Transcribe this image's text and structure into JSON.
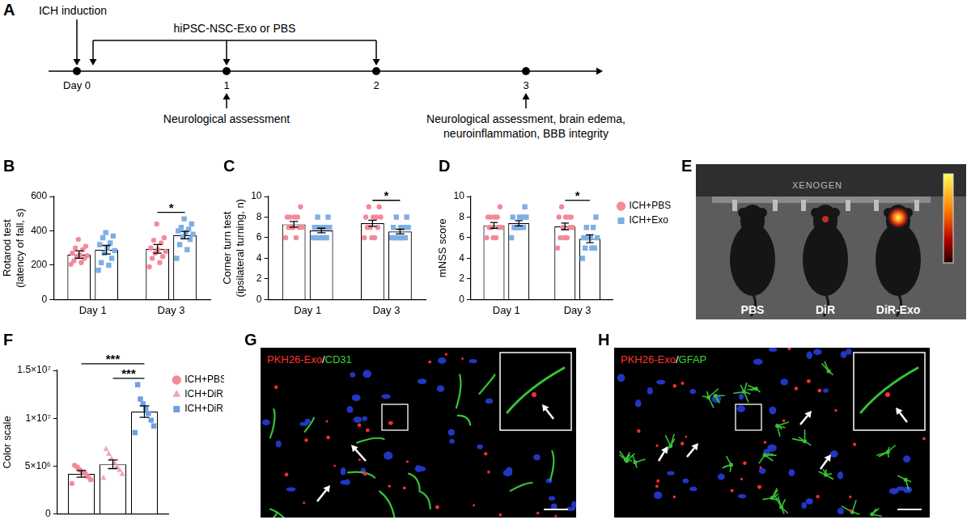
{
  "panel_a": {
    "letter": "A",
    "timeline_ticks": [
      {
        "value": 0,
        "label": "Day 0"
      },
      1,
      2,
      3
    ],
    "top_event": {
      "day": 0,
      "text": "ICH induction"
    },
    "treatment": {
      "days": [
        0,
        1,
        2
      ],
      "text": "hiPSC-NSC-Exo or PBS"
    },
    "bottom_events": [
      {
        "day": 1,
        "text": [
          "Neurological assessment"
        ]
      },
      {
        "day": 3,
        "text": [
          "Neurological assessment, brain edema,",
          "neuroinflammation, BBB integrity"
        ]
      }
    ]
  },
  "chart_data": [
    {
      "letter": "B",
      "type": "bar",
      "y_label": [
        "Rotarod test",
        "(latency of fall, s)"
      ],
      "categories": [
        "Day 1",
        "Day 3"
      ],
      "ylim": [
        0,
        600
      ],
      "yticks": [
        0,
        200,
        400,
        600
      ],
      "grid": false,
      "series": [
        {
          "name": "ICH+PBS",
          "color": "#f4899a",
          "marker": "circle",
          "values": [
            262,
            295
          ],
          "errors": [
            22,
            25
          ],
          "points": [
            [
              205,
              215,
              225,
              240,
              250,
              255,
              260,
              270,
              290,
              300,
              310,
              350
            ],
            [
              190,
              215,
              240,
              250,
              270,
              280,
              290,
              300,
              330,
              345,
              360,
              440
            ]
          ]
        },
        {
          "name": "ICH+Exo",
          "color": "#7eaee6",
          "marker": "square",
          "values": [
            290,
            375
          ],
          "errors": [
            25,
            22
          ],
          "points": [
            [
              170,
              200,
              215,
              240,
              270,
              285,
              300,
              320,
              330,
              360,
              370,
              390
            ],
            [
              240,
              290,
              320,
              350,
              365,
              380,
              390,
              400,
              410,
              420,
              440,
              470
            ]
          ]
        }
      ],
      "annotations": [
        {
          "text": "*",
          "series": [
            "ICH+PBS",
            "ICH+Exo"
          ],
          "category": "Day 3"
        }
      ]
    },
    {
      "letter": "C",
      "type": "bar",
      "y_label": [
        "Corner turn test",
        "(ipsilateral turning, n)"
      ],
      "categories": [
        "Day 1",
        "Day 3"
      ],
      "ylim": [
        0,
        10
      ],
      "yticks": [
        0,
        2,
        4,
        6,
        8,
        10
      ],
      "grid": false,
      "series": [
        {
          "name": "ICH+PBS",
          "color": "#f4899a",
          "marker": "circle",
          "values": [
            7.3,
            7.4
          ],
          "errors": [
            0.28,
            0.3
          ],
          "points": [
            [
              6,
              6,
              7,
              7,
              7,
              7,
              8,
              8,
              8,
              8,
              9,
              7
            ],
            [
              6,
              6,
              7,
              7,
              7,
              8,
              8,
              8,
              8,
              9,
              9,
              6
            ]
          ]
        },
        {
          "name": "ICH+Exo",
          "color": "#7eaee6",
          "marker": "square",
          "values": [
            6.7,
            6.6
          ],
          "errors": [
            0.22,
            0.22
          ],
          "points": [
            [
              6,
              6,
              6,
              6,
              7,
              7,
              7,
              7,
              7,
              8,
              8,
              6
            ],
            [
              6,
              6,
              6,
              6,
              6,
              7,
              7,
              7,
              7,
              8,
              8,
              6
            ]
          ]
        }
      ],
      "annotations": [
        {
          "text": "*",
          "series": [
            "ICH+PBS",
            "ICH+Exo"
          ],
          "category": "Day 3"
        }
      ]
    },
    {
      "letter": "D",
      "type": "bar",
      "y_label": "mNSS score",
      "categories": [
        "Day 1",
        "Day 3"
      ],
      "ylim": [
        0,
        10
      ],
      "yticks": [
        0,
        2,
        4,
        6,
        8,
        10
      ],
      "grid": false,
      "legend": "right",
      "series": [
        {
          "name": "ICH+PBS",
          "color": "#f4899a",
          "marker": "circle",
          "values": [
            7.2,
            7.1
          ],
          "errors": [
            0.28,
            0.32
          ],
          "points": [
            [
              6,
              6,
              7,
              7,
              7,
              7,
              8,
              8,
              8,
              8,
              9,
              6
            ],
            [
              5,
              6,
              6,
              7,
              7,
              7,
              8,
              8,
              8,
              9,
              8,
              6
            ]
          ]
        },
        {
          "name": "ICH+Exo",
          "color": "#7eaee6",
          "marker": "square",
          "values": [
            7.4,
            5.9
          ],
          "errors": [
            0.25,
            0.38
          ],
          "points": [
            [
              6,
              7,
              7,
              7,
              7,
              8,
              8,
              8,
              8,
              7,
              9,
              7
            ],
            [
              4,
              5,
              5,
              5,
              6,
              6,
              6,
              6,
              7,
              7,
              8,
              6
            ]
          ]
        }
      ],
      "annotations": [
        {
          "text": "*",
          "series": [
            "ICH+PBS",
            "ICH+Exo"
          ],
          "category": "Day 3"
        }
      ]
    },
    {
      "letter": "F",
      "type": "bar",
      "y_label": "Color scale",
      "categories": [
        null
      ],
      "ylim": [
        0,
        15000000
      ],
      "yticks": [
        0,
        {
          "value": 5000000,
          "label": "5×10⁶"
        },
        {
          "value": 10000000,
          "label": "1×10⁷"
        },
        {
          "value": 15000000,
          "label": "1.5×10⁷"
        }
      ],
      "grid": false,
      "legend": "right",
      "tick_labels": "y",
      "series": [
        {
          "name": "ICH+PBS",
          "color": "#f4899a",
          "marker": "circle",
          "values": [
            4200000
          ],
          "errors": [
            350000
          ],
          "points": [
            [
              3200000,
              3600000,
              3900000,
              4200000,
              4400000,
              4600000,
              4900000,
              5100000
            ]
          ]
        },
        {
          "name": "ICH+DiR",
          "color": "#f2a3b3",
          "marker": "triangle",
          "values": [
            5200000
          ],
          "errors": [
            450000
          ],
          "points": [
            [
              3800000,
              4200000,
              4600000,
              5000000,
              5400000,
              5800000,
              6300000,
              6800000
            ]
          ]
        },
        {
          "name": "ICH+DiR-Exo",
          "color": "#6f9fe0",
          "marker": "square",
          "values": [
            10700000
          ],
          "errors": [
            600000
          ],
          "points": [
            [
              8500000,
              9200000,
              9800000,
              10500000,
              11000000,
              11500000,
              12000000,
              13500000
            ]
          ]
        }
      ],
      "annotations": [
        {
          "text": "***",
          "series": [
            "ICH+PBS",
            "ICH+DiR-Exo"
          ],
          "category": null
        },
        {
          "text": "***",
          "series": [
            "ICH+DiR",
            "ICH+DiR-Exo"
          ],
          "category": null
        }
      ]
    }
  ],
  "panel_e": {
    "letter": "E",
    "brand": "XENOGEN",
    "labels": [
      "PBS",
      "DiR",
      "DiR-Exo"
    ]
  },
  "panels_gh": [
    {
      "letter": "G",
      "kind": "vessel",
      "stain_labels": [
        {
          "text": "PKH26-Exo",
          "color": "#ff3030"
        },
        {
          "text": "/",
          "color": "#ffffff"
        },
        {
          "text": "CD31",
          "color": "#35d235"
        }
      ]
    },
    {
      "letter": "H",
      "kind": "astrocyte",
      "stain_labels": [
        {
          "text": "PKH26-Exo",
          "color": "#ff3030"
        },
        {
          "text": "/",
          "color": "#ffffff"
        },
        {
          "text": "GFAP",
          "color": "#35d235"
        }
      ]
    }
  ]
}
